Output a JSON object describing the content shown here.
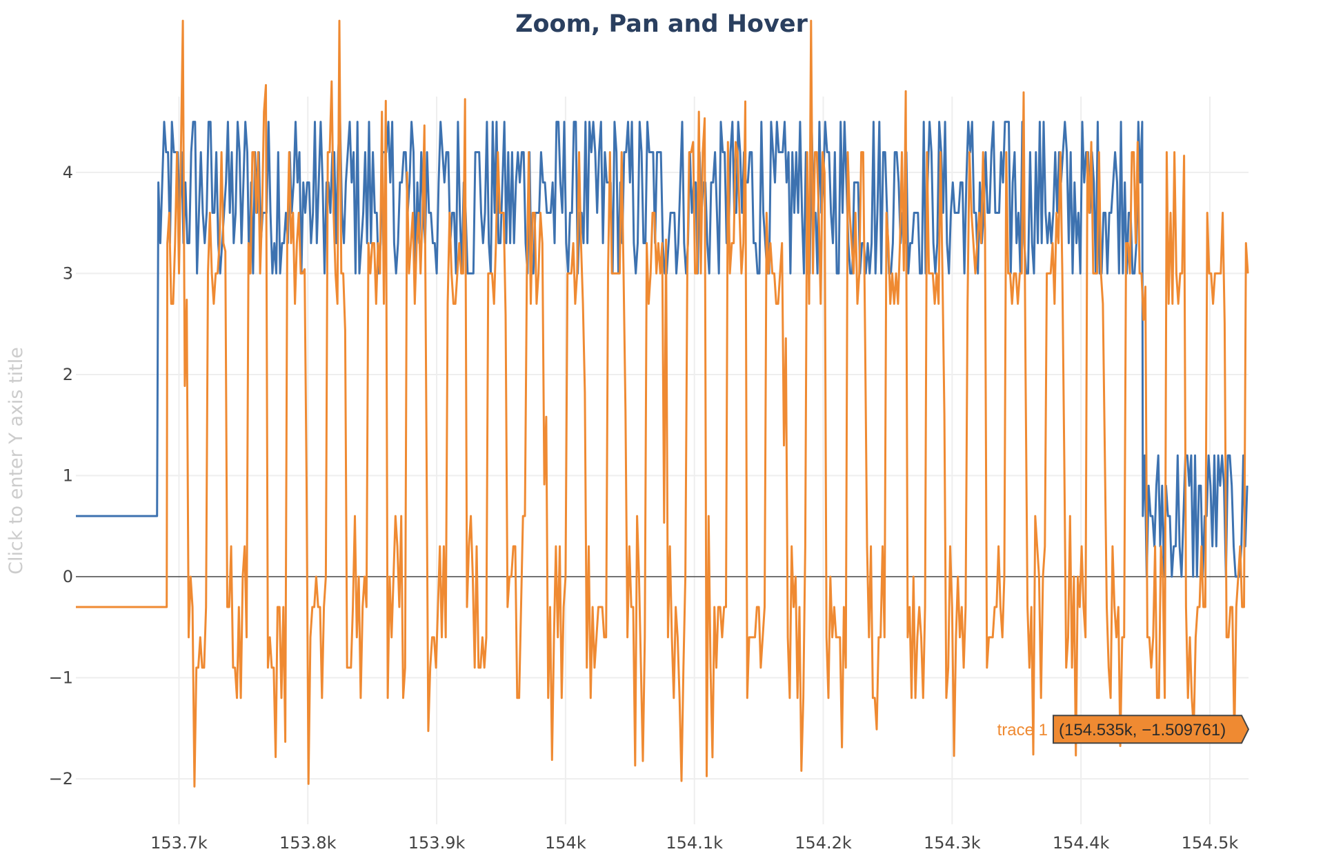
{
  "chart_data": {
    "type": "line",
    "title": "Zoom, Pan and Hover",
    "xlabel": "",
    "ylabel": "Click to enter Y axis title",
    "xlim": [
      153620,
      154530
    ],
    "ylim": [
      -2.45,
      4.75
    ],
    "x_ticks": [
      153700,
      153800,
      153900,
      154000,
      154100,
      154200,
      154300,
      154400,
      154500
    ],
    "x_tick_labels": [
      "153.7k",
      "153.8k",
      "153.9k",
      "154k",
      "154.1k",
      "154.2k",
      "154.3k",
      "154.4k",
      "154.5k"
    ],
    "y_ticks": [
      -2,
      -1,
      0,
      1,
      2,
      3,
      4
    ],
    "y_tick_labels": [
      "−2",
      "−1",
      "0",
      "1",
      "2",
      "3",
      "4"
    ],
    "grid": true,
    "legend": "none",
    "series": [
      {
        "color": "#3d72b0",
        "description_of_pattern": "",
        "x_start": 153620,
        "x_step": 1.5,
        "segments": [
          {
            "x_from": 153620,
            "x_to": 153684,
            "value": 0.6
          },
          {
            "x_from": 153684,
            "x_to": 154448,
            "low": 3.0,
            "high": 4.5
          },
          {
            "x_from": 154448,
            "x_to": 154530,
            "low": 0.0,
            "high": 1.2
          }
        ]
      },
      {
        "color": "#ef8a32",
        "x_start": 153620,
        "x_step": 1.5,
        "segments": [
          {
            "x_from": 153620,
            "x_to": 153691,
            "value": -0.3
          },
          {
            "x_from": 153691,
            "x_to": 154530,
            "low": -2.1,
            "high": 4.5
          }
        ]
      }
    ],
    "hover": {
      "trace_name": "trace 1",
      "text": "(154.535k, −1.509761)",
      "x": 154535,
      "y": -1.509761
    }
  }
}
